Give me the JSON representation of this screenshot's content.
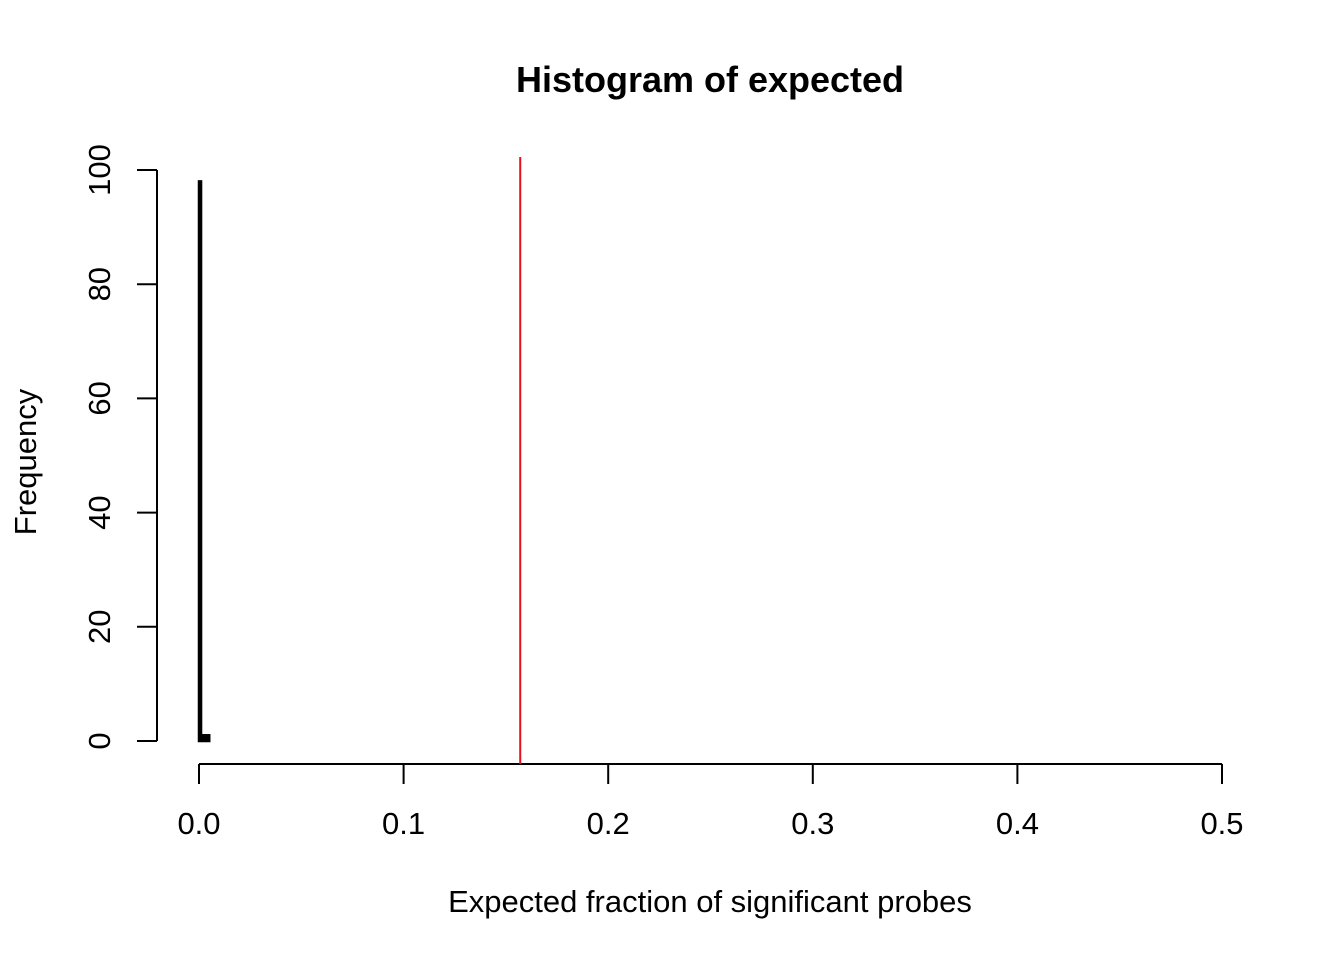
{
  "chart_data": {
    "type": "bar",
    "title": "Histogram of expected",
    "xlabel": "Expected fraction of significant probes",
    "ylabel": "Frequency",
    "xlim": [
      0,
      0.5
    ],
    "ylim": [
      0,
      100
    ],
    "x_ticks": [
      "0.0",
      "0.1",
      "0.2",
      "0.3",
      "0.4",
      "0.5"
    ],
    "x_tick_values": [
      0,
      0.1,
      0.2,
      0.3,
      0.4,
      0.5
    ],
    "y_ticks": [
      "0",
      "20",
      "40",
      "60",
      "80",
      "100"
    ],
    "y_tick_values": [
      0,
      20,
      40,
      60,
      80,
      100
    ],
    "bins": [
      {
        "start": 0.0,
        "end": 0.001,
        "count": 98
      },
      {
        "start": 0.001,
        "end": 0.002,
        "count": 0
      },
      {
        "start": 0.002,
        "end": 0.003,
        "count": 1
      },
      {
        "start": 0.003,
        "end": 0.004,
        "count": 0
      },
      {
        "start": 0.004,
        "end": 0.005,
        "count": 1
      }
    ],
    "reference_line": {
      "x": 0.157,
      "color": "#e8111b"
    },
    "grid": false,
    "legend": "none"
  }
}
